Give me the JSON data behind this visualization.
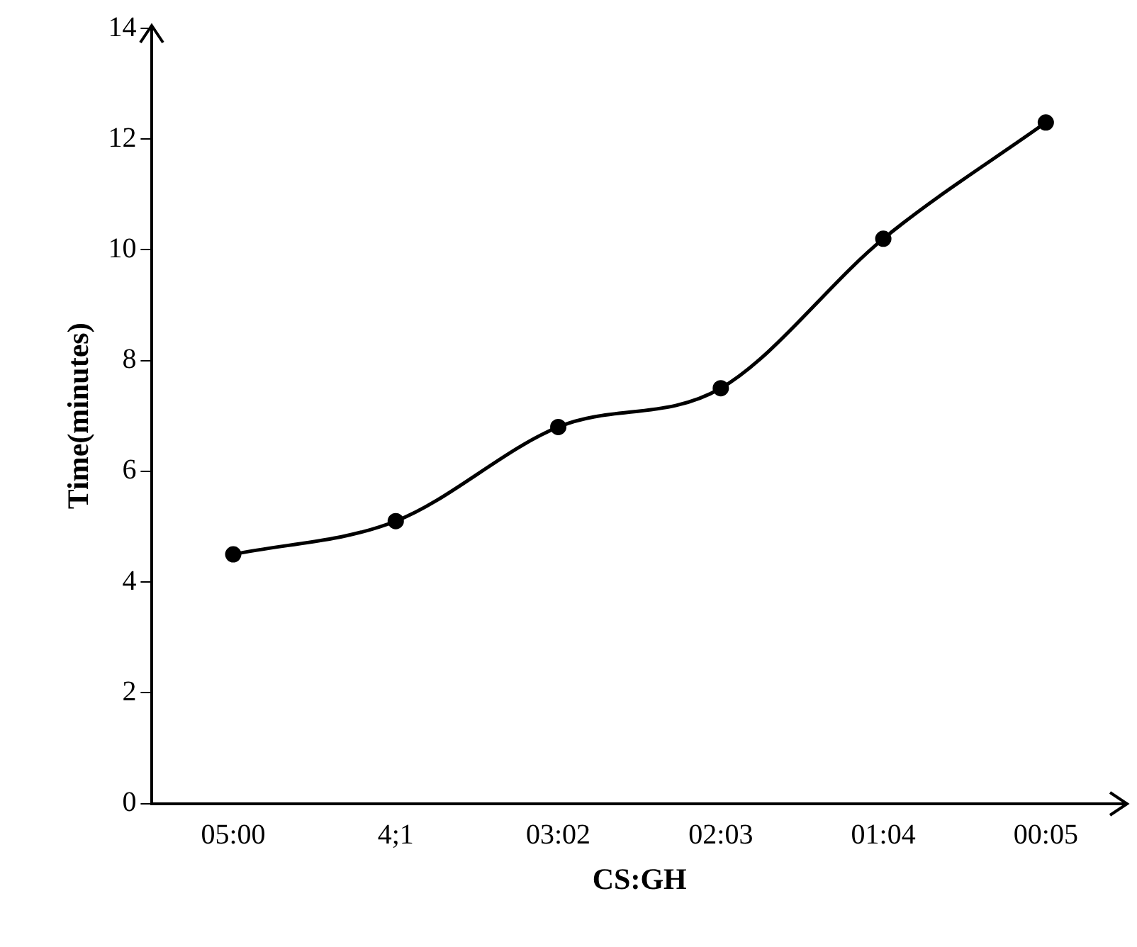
{
  "chart_data": {
    "type": "line",
    "xlabel": "CS:GH",
    "ylabel": "Time(minutes)",
    "categories": [
      "05:00",
      "4;1",
      "03:02",
      "02:03",
      "01:04",
      "00:05"
    ],
    "series": [
      {
        "color": "#000000",
        "values": [
          4.5,
          5.1,
          6.8,
          7.5,
          10.2,
          12.3
        ]
      }
    ],
    "ylim": [
      0,
      14
    ],
    "yticks": [
      0,
      2,
      4,
      6,
      8,
      10,
      12,
      14
    ],
    "grid": false,
    "marker": "circle",
    "line_style": "solid"
  }
}
